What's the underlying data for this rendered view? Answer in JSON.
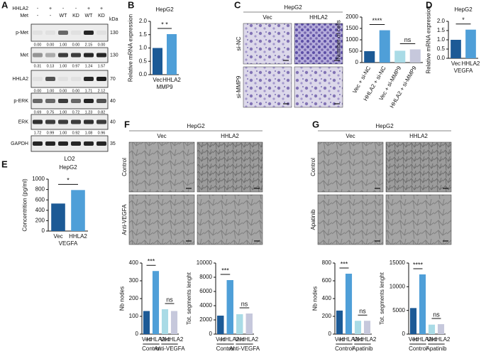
{
  "figure": {
    "panel_labels": [
      "A",
      "B",
      "C",
      "D",
      "E",
      "F",
      "G"
    ],
    "blot": {
      "header_rows": [
        {
          "label": "HHLA2",
          "lanes": [
            "-",
            "+",
            "-",
            "-",
            "+",
            "+"
          ]
        },
        {
          "label": "Met",
          "lanes": [
            "-",
            "-",
            "WT",
            "KD",
            "WT",
            "KD"
          ]
        }
      ],
      "unit": "kDa",
      "rows": [
        {
          "label": "p-Met",
          "kda": 130,
          "quant": [
            "0.00",
            "0.00",
            "1.00",
            "0.00",
            "2.15",
            "0.00"
          ]
        },
        {
          "label": "Met",
          "kda": 130,
          "quant": [
            "0.31",
            "0.13",
            "1.00",
            "0.97",
            "1.24",
            "1.57"
          ]
        },
        {
          "label": "HHLA2",
          "kda": 70,
          "quant": [
            "0.00",
            "1.00",
            "0.00",
            "0.00",
            "1.71",
            "2.12"
          ]
        },
        {
          "label": "p-ERK",
          "kda": 40,
          "quant": [
            "0.69",
            "0.75",
            "1.00",
            "0.72",
            "1.23",
            "0.82"
          ]
        },
        {
          "label": "ERK",
          "kda": 40,
          "quant": [
            "1.72",
            "0.99",
            "1.00",
            "0.92",
            "1.08",
            "0.96"
          ]
        },
        {
          "label": "GAPDH",
          "kda": 35
        }
      ],
      "cell_line": "LO2"
    },
    "transwell": {
      "title": "HepG2",
      "columns": [
        "Vec",
        "HHLA2"
      ],
      "rows": [
        "si-NC",
        "si-MMP9"
      ]
    },
    "tube_f": {
      "title": "HepG2",
      "columns": [
        "Vec",
        "HHLA2"
      ],
      "rows": [
        "Control",
        "Anti-VEGFA"
      ]
    },
    "tube_g": {
      "title": "HepG2",
      "columns": [
        "Vec",
        "HHLA2"
      ],
      "rows": [
        "Control",
        "Apatinib"
      ]
    }
  },
  "chart_data": [
    {
      "type": "bar",
      "title": "HepG2",
      "ylabel": "Relative mRNA expression",
      "xlabel": "MMP9",
      "categories": [
        "Vec",
        "HHLA2"
      ],
      "values": [
        1.0,
        1.52
      ],
      "colors": [
        "#1c5a96",
        "#4f9fd8"
      ],
      "ylim": [
        0,
        2
      ],
      "yticks": [
        {
          "value": 0,
          "label": "0.0"
        },
        0.5,
        {
          "value": 1,
          "label": "1.0"
        },
        1.5,
        {
          "value": 2,
          "label": "2.0"
        }
      ],
      "annotations": [
        "* *"
      ]
    },
    {
      "type": "bar",
      "ylabel": "Number of cells",
      "categories": [
        "Vec + si-NC",
        "HHLA2 + si-NC",
        "Vec + si-MMP9",
        "HHLA2 + si-MMP9"
      ],
      "values": [
        500,
        1420,
        520,
        580
      ],
      "colors": [
        "#1c5a96",
        "#4f9fd8",
        "#a9dbe6",
        "#c6c8dc"
      ],
      "ylim": [
        0,
        2000
      ],
      "yticks": [
        0,
        500,
        1000,
        1500,
        2000
      ],
      "annotations": [
        "****",
        "ns"
      ]
    },
    {
      "type": "bar",
      "title": "HepG2",
      "ylabel": "Relative mRNA expression",
      "xlabel": "VEGFA",
      "categories": [
        "Vec",
        "HHLA2"
      ],
      "values": [
        1.0,
        1.55
      ],
      "colors": [
        "#1c5a96",
        "#4f9fd8"
      ],
      "ylim": [
        0,
        2
      ],
      "yticks": [
        {
          "value": 0,
          "label": "0.0"
        },
        0.5,
        {
          "value": 1,
          "label": "1.0"
        },
        1.5,
        {
          "value": 2,
          "label": "2.0"
        }
      ],
      "annotations": [
        "*"
      ]
    },
    {
      "type": "bar",
      "title": "HepG2",
      "ylabel": "Concentrition (pg/ml)",
      "xlabel": "VEGFA",
      "categories": [
        "Vec",
        "HHLA2"
      ],
      "values": [
        530,
        790
      ],
      "colors": [
        "#1c5a96",
        "#4f9fd8"
      ],
      "ylim": [
        0,
        1000
      ],
      "yticks": [
        0,
        200,
        400,
        600,
        800,
        1000
      ],
      "annotations": [
        "*"
      ]
    },
    {
      "type": "bar",
      "ylabel": "Nb nodes",
      "categories": [
        "Vec",
        "HHLA2",
        "Vec",
        "HHLA2"
      ],
      "groups": [
        "Control",
        "Anti-VEGFA"
      ],
      "values": [
        130,
        355,
        140,
        130
      ],
      "colors": [
        "#1c5a96",
        "#4f9fd8",
        "#a9dbe6",
        "#c6c8dc"
      ],
      "ylim": [
        0,
        400
      ],
      "yticks": [
        0,
        100,
        200,
        300,
        400
      ],
      "annotations": [
        "***",
        "ns"
      ]
    },
    {
      "type": "bar",
      "ylabel": "Tot. segments lenght",
      "categories": [
        "Vec",
        "HHLA2",
        "Vec",
        "HHLA2"
      ],
      "groups": [
        "Control",
        "Anti-VEGFA"
      ],
      "values": [
        2600,
        7600,
        2800,
        2900
      ],
      "colors": [
        "#1c5a96",
        "#4f9fd8",
        "#a9dbe6",
        "#c6c8dc"
      ],
      "ylim": [
        0,
        10000
      ],
      "yticks": [
        0,
        2000,
        4000,
        6000,
        8000,
        10000
      ],
      "annotations": [
        "***",
        "ns"
      ]
    },
    {
      "type": "bar",
      "ylabel": "Nb nodes",
      "categories": [
        "Vec",
        "HHLA2",
        "Vec",
        "HHLA2"
      ],
      "groups": [
        "Control",
        "Apatinib"
      ],
      "values": [
        265,
        680,
        150,
        150
      ],
      "colors": [
        "#1c5a96",
        "#4f9fd8",
        "#a9dbe6",
        "#c6c8dc"
      ],
      "ylim": [
        0,
        800
      ],
      "yticks": [
        0,
        200,
        400,
        600,
        800
      ],
      "annotations": [
        "***",
        "ns"
      ]
    },
    {
      "type": "bar",
      "ylabel": "Tot. segments lenght",
      "categories": [
        "Vec",
        "HHLA2",
        "Vec",
        "HHLA2"
      ],
      "groups": [
        "Control",
        "Apatinib"
      ],
      "values": [
        5500,
        12600,
        2000,
        2100
      ],
      "colors": [
        "#1c5a96",
        "#4f9fd8",
        "#a9dbe6",
        "#c6c8dc"
      ],
      "ylim": [
        0,
        15000
      ],
      "yticks": [
        0,
        5000,
        10000,
        15000
      ],
      "annotations": [
        "****",
        "ns"
      ]
    }
  ]
}
